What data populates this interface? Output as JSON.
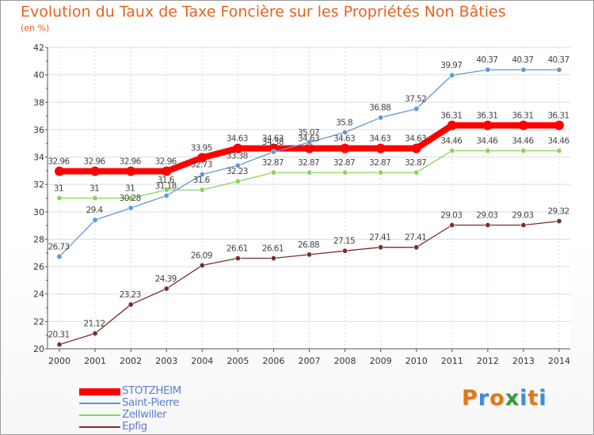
{
  "header": {
    "title": "Evolution du Taux de Taxe Foncière sur les Propriétés Non Bâties",
    "subtitle": "(en %)"
  },
  "logo": {
    "letters": [
      {
        "char": "P",
        "color": "#e07a14"
      },
      {
        "char": "r",
        "color": "#3a8fd8"
      },
      {
        "char": "o",
        "color": "#e07a14"
      },
      {
        "char": "x",
        "color": "#2f9e3a"
      },
      {
        "char": "i",
        "color": "#3a8fd8"
      },
      {
        "char": "t",
        "color": "#e07a14"
      },
      {
        "char": "i",
        "color": "#3a8fd8"
      }
    ]
  },
  "chart_data": {
    "type": "line",
    "title": "Evolution du Taux de Taxe Foncière sur les Propriétés Non Bâties",
    "ylabel": "(en %)",
    "xlabel": "",
    "x": [
      "2000",
      "2001",
      "2002",
      "2003",
      "2004",
      "2005",
      "2006",
      "2007",
      "2008",
      "2009",
      "2010",
      "2011",
      "2012",
      "2013",
      "2014"
    ],
    "ylim": [
      20,
      42
    ],
    "yticks": [
      20,
      22,
      24,
      26,
      28,
      30,
      32,
      34,
      36,
      38,
      40,
      42
    ],
    "grid": true,
    "legend_position": "bottom-left",
    "series": [
      {
        "name": "STOTZHEIM",
        "color": "#ff0000",
        "values": [
          32.96,
          32.96,
          32.96,
          32.96,
          33.95,
          34.63,
          34.63,
          34.63,
          34.63,
          34.63,
          34.63,
          36.31,
          36.31,
          36.31,
          36.31
        ],
        "labels": [
          "32.96",
          "32.96",
          "32.96",
          "32.96",
          "33.95",
          "34.63",
          "34.63",
          "34.63",
          "34.63",
          "34.63",
          "34.63",
          "36.31",
          "36.31",
          "36.31",
          "36.31"
        ]
      },
      {
        "name": "Saint-Pierre",
        "color": "#5f98d4",
        "values": [
          26.73,
          29.4,
          30.28,
          31.18,
          32.73,
          33.38,
          34.38,
          35.07,
          35.8,
          36.88,
          37.52,
          39.97,
          40.37,
          40.37,
          40.37
        ],
        "labels": [
          "26.73",
          "29.4",
          "30.28",
          "31.18",
          "32.73",
          "33.38",
          "34.38",
          "35.07",
          "35.8",
          "36.88",
          "37.52",
          "39.97",
          "40.37",
          "40.37",
          "40.37"
        ]
      },
      {
        "name": "Zellwiller",
        "color": "#88d45a",
        "values": [
          31,
          31,
          31,
          31.6,
          31.6,
          32.23,
          32.87,
          32.87,
          32.87,
          32.87,
          32.87,
          34.46,
          34.46,
          34.46,
          34.46
        ],
        "labels": [
          "31",
          "31",
          "31",
          "31.6",
          "31.6",
          "32.23",
          "32.87",
          "32.87",
          "32.87",
          "32.87",
          "32.87",
          "34.46",
          "34.46",
          "34.46",
          "34.46"
        ]
      },
      {
        "name": "Epfig",
        "color": "#7a2e2e",
        "values": [
          20.31,
          21.12,
          23.23,
          24.39,
          26.09,
          26.61,
          26.61,
          26.88,
          27.15,
          27.41,
          27.41,
          29.03,
          29.03,
          29.03,
          29.32
        ],
        "labels": [
          "20.31",
          "21.12",
          "23.23",
          "24.39",
          "26.09",
          "26.61",
          "26.61",
          "26.88",
          "27.15",
          "27.41",
          "27.41",
          "29.03",
          "29.03",
          "29.03",
          "29.32"
        ]
      }
    ]
  }
}
